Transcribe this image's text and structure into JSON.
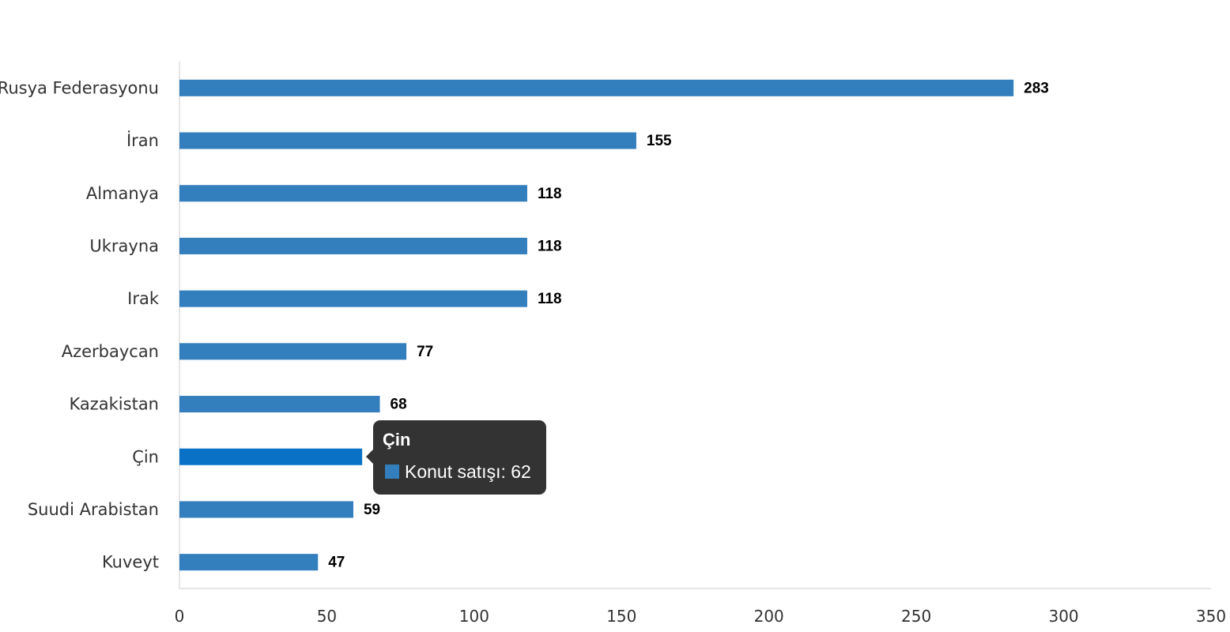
{
  "chart_data": {
    "type": "bar",
    "orientation": "horizontal",
    "categories": [
      "Rusya Federasyonu",
      "İran",
      "Almanya",
      "Ukrayna",
      "Irak",
      "Azerbaycan",
      "Kazakistan",
      "Çin",
      "Suudi Arabistan",
      "Kuveyt"
    ],
    "series": [
      {
        "name": "Konut satışı",
        "values": [
          283,
          155,
          118,
          118,
          118,
          77,
          68,
          62,
          59,
          47
        ]
      }
    ],
    "xlim": [
      0,
      350
    ],
    "x_ticks": [
      0,
      50,
      100,
      150,
      200,
      250,
      300,
      350
    ],
    "grid": false,
    "data_labels": true,
    "highlighted_index": 7,
    "colors": {
      "bar": "#337ebd",
      "bar_highlight": "#0a72c6",
      "axis": "#cccccc"
    }
  },
  "tooltip": {
    "title": "Çin",
    "series_name": "Konut satışı",
    "value_text": "Konut satışı: 62",
    "swatch_color": "#337ebd"
  }
}
